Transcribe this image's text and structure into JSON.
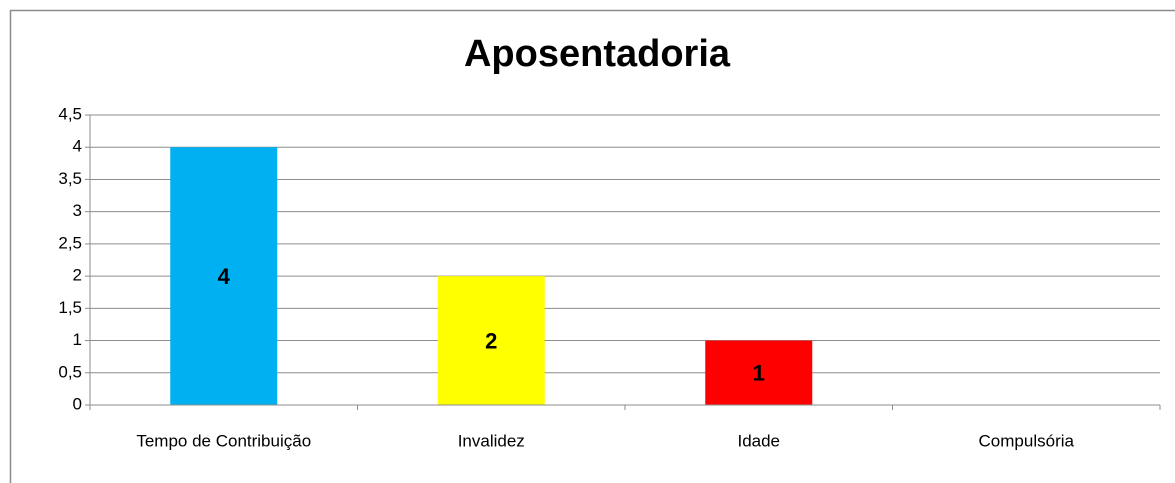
{
  "chart_data": {
    "type": "bar",
    "title": "Aposentadoria",
    "categories": [
      "Tempo de Contribuição",
      "Invalidez",
      "Idade",
      "Compulsória"
    ],
    "values": [
      4,
      2,
      1,
      0
    ],
    "value_labels": [
      "4",
      "2",
      "1",
      null
    ],
    "colors": [
      "#00b0f0",
      "#ffff00",
      "#ff0000",
      "#7f7f7f"
    ],
    "ylim": [
      0,
      4.5
    ],
    "yticks": [
      0,
      {
        "value": 0.5,
        "label": "0,5"
      },
      1,
      {
        "value": 1.5,
        "label": "1,5"
      },
      2,
      {
        "value": 2.5,
        "label": "2,5"
      },
      3,
      {
        "value": 3.5,
        "label": "3,5"
      },
      4,
      {
        "value": 4.5,
        "label": "4,5"
      }
    ],
    "grid": true
  }
}
